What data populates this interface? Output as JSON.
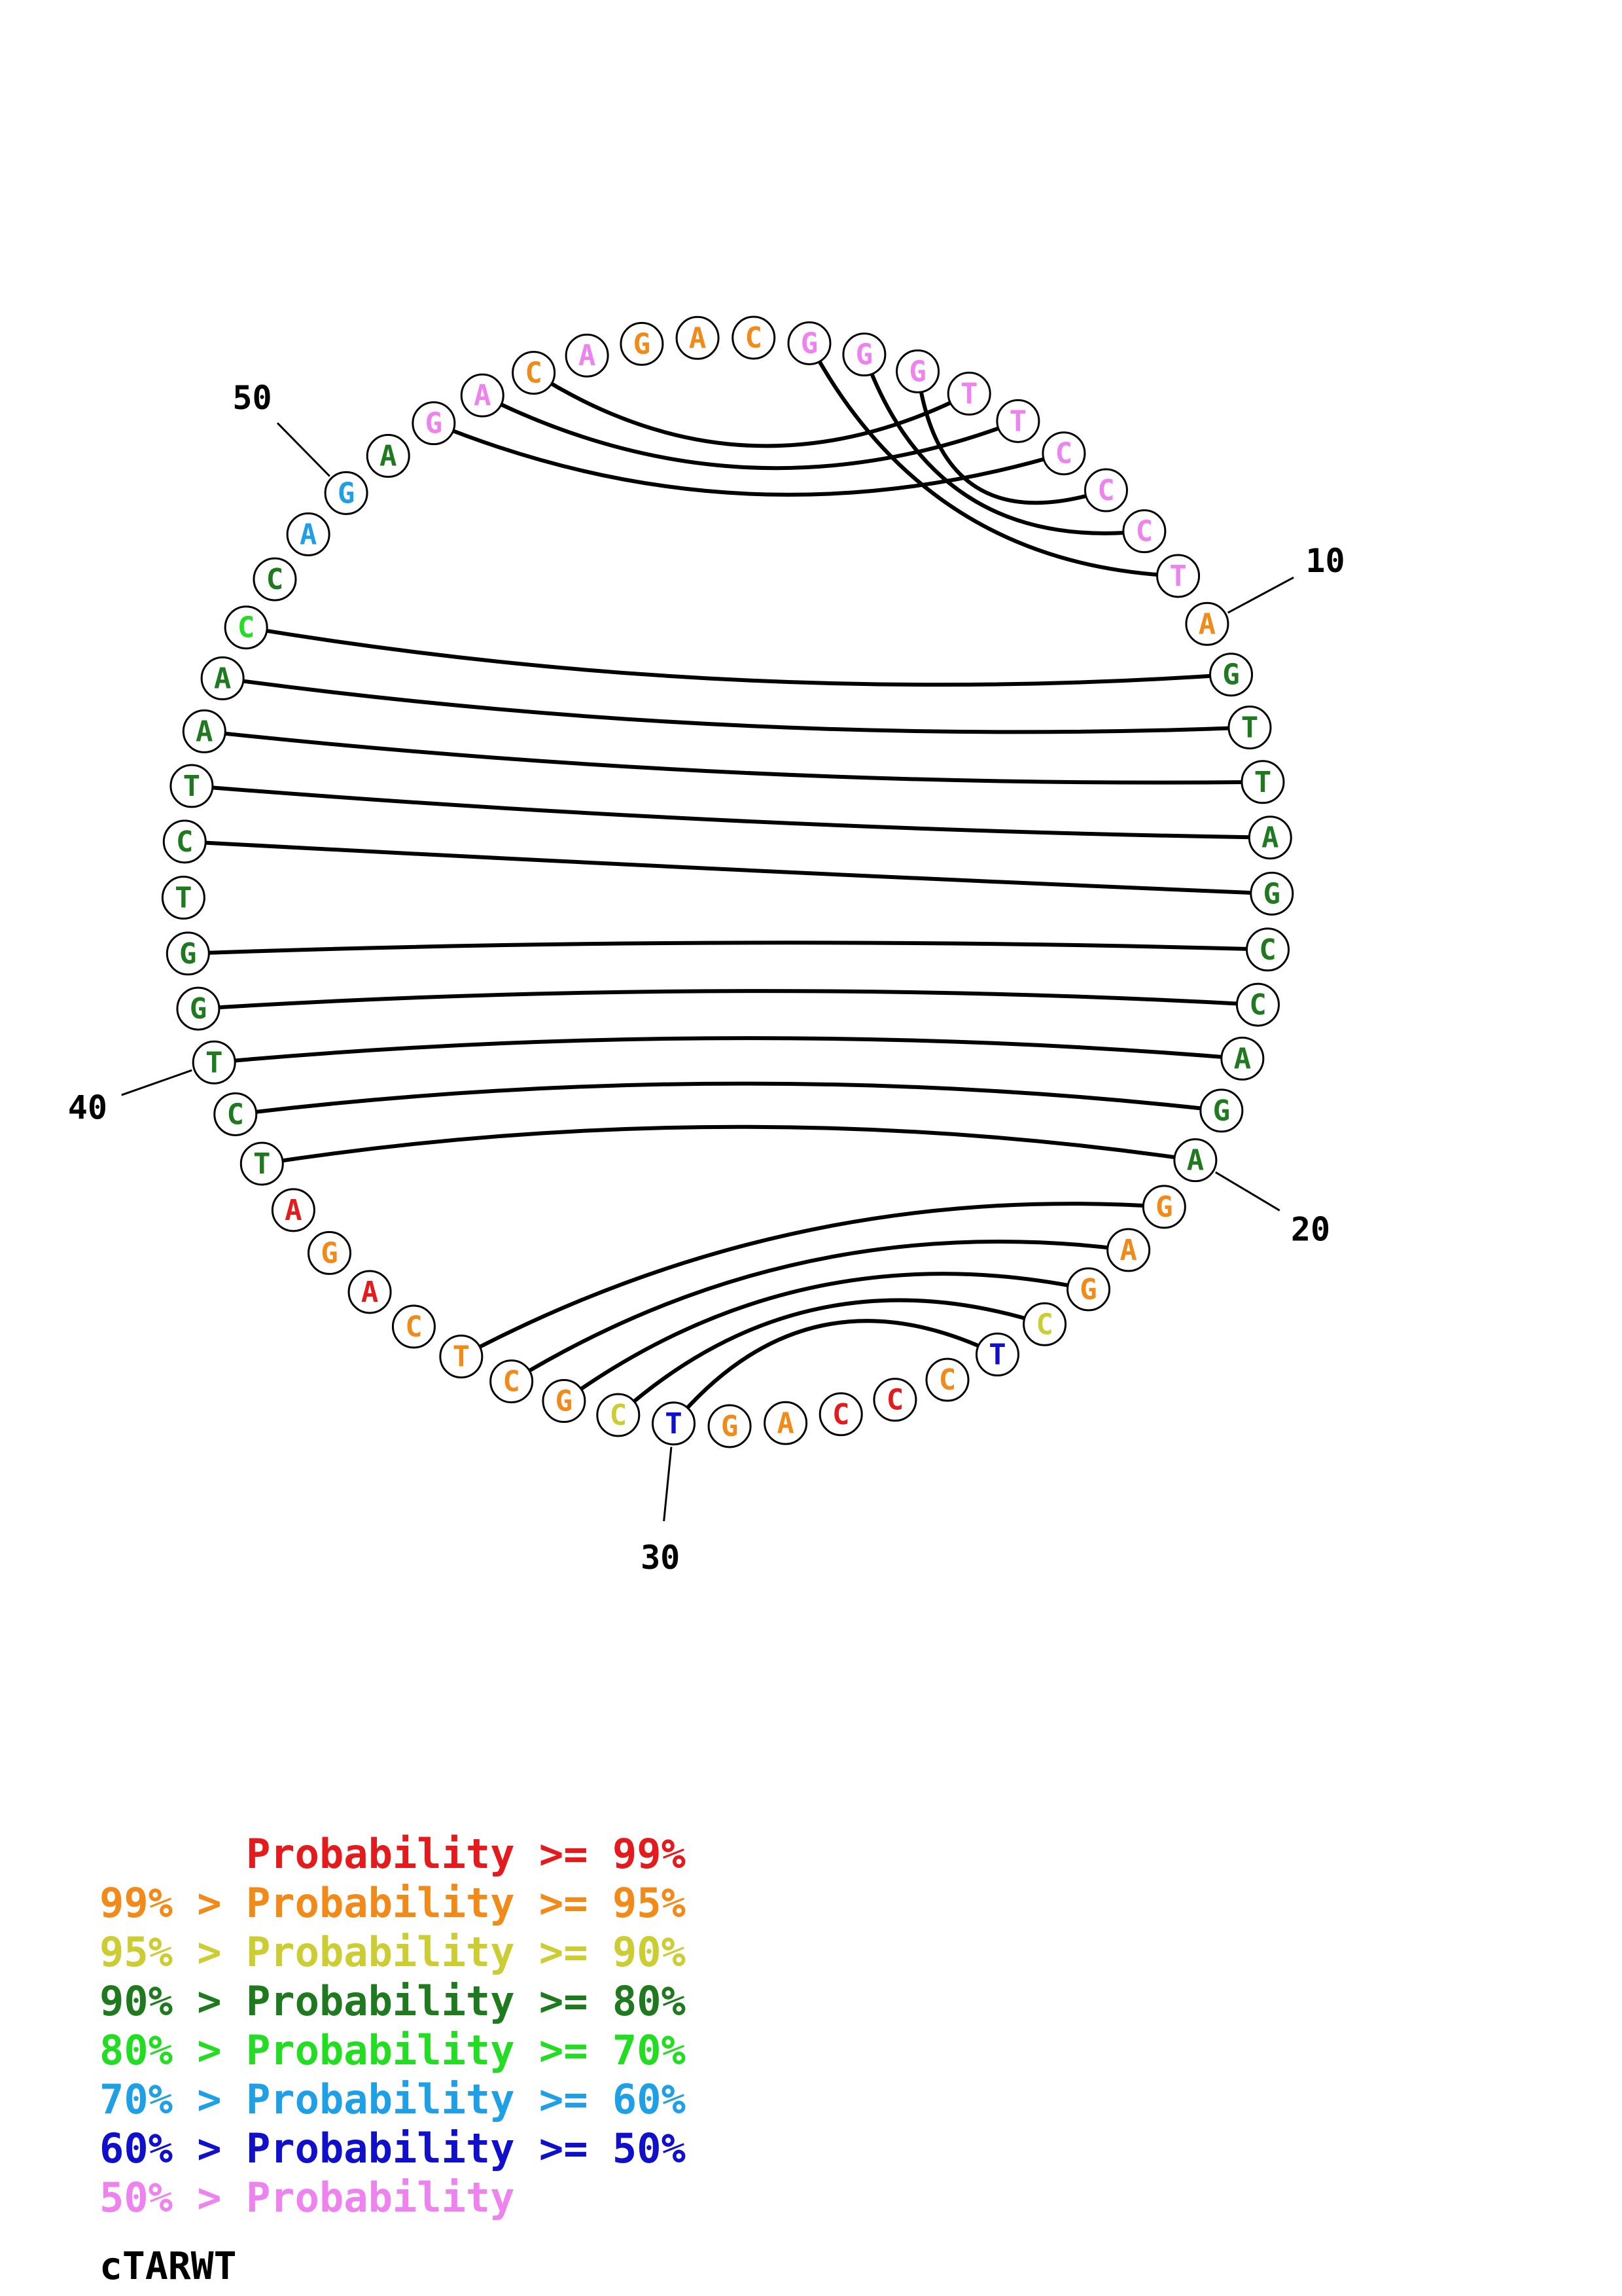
{
  "title": "cTARWT",
  "sequence": [
    "G",
    "G",
    "G",
    "T",
    "T",
    "C",
    "C",
    "C",
    "T",
    "A",
    "G",
    "T",
    "T",
    "A",
    "G",
    "C",
    "C",
    "A",
    "G",
    "A",
    "G",
    "A",
    "G",
    "C",
    "T",
    "C",
    "C",
    "C",
    "A",
    "G",
    "T",
    "C",
    "G",
    "C",
    "T",
    "C",
    "A",
    "G",
    "A",
    "T",
    "C",
    "T",
    "G",
    "G",
    "T",
    "C",
    "T",
    "A",
    "A",
    "C",
    "C",
    "A",
    "G",
    "A",
    "G",
    "A",
    "C",
    "A",
    "G",
    "A",
    "C"
  ],
  "nucleotide_colors": [
    "pink",
    "pink",
    "pink",
    "pink",
    "pink",
    "pink",
    "pink",
    "pink",
    "pink",
    "orange",
    "darkgreen",
    "darkgreen",
    "darkgreen",
    "darkgreen",
    "darkgreen",
    "darkgreen",
    "darkgreen",
    "darkgreen",
    "darkgreen",
    "darkgreen",
    "orange",
    "orange",
    "orange",
    "yellow",
    "blue",
    "orange",
    "red",
    "red",
    "orange",
    "orange",
    "blue",
    "yellow",
    "orange",
    "orange",
    "orange",
    "orange",
    "red",
    "orange",
    "red",
    "darkgreen",
    "darkgreen",
    "darkgreen",
    "darkgreen",
    "darkgreen",
    "darkgreen",
    "darkgreen",
    "darkgreen",
    "darkgreen",
    "darkgreen",
    "green",
    "darkgreen",
    "skyblue",
    "skyblue",
    "darkgreen",
    "pink",
    "pink",
    "orange",
    "pink",
    "orange",
    "orange",
    "orange"
  ],
  "pairs": [
    [
      1,
      9
    ],
    [
      2,
      8
    ],
    [
      3,
      7
    ],
    [
      4,
      57
    ],
    [
      5,
      56
    ],
    [
      6,
      55
    ],
    [
      11,
      50
    ],
    [
      12,
      49
    ],
    [
      13,
      48
    ],
    [
      14,
      47
    ],
    [
      15,
      46
    ],
    [
      16,
      44
    ],
    [
      17,
      43
    ],
    [
      18,
      42
    ],
    [
      19,
      41
    ],
    [
      20,
      40
    ],
    [
      21,
      35
    ],
    [
      22,
      34
    ],
    [
      23,
      33
    ],
    [
      24,
      32
    ],
    [
      25,
      31
    ]
  ],
  "position_labels": [
    {
      "index": 10,
      "text": "10"
    },
    {
      "index": 20,
      "text": "20"
    },
    {
      "index": 31,
      "text": "30"
    },
    {
      "index": 42,
      "text": "40"
    },
    {
      "index": 53,
      "text": "50"
    }
  ],
  "colors": {
    "red": "#e41a1c",
    "orange": "#f28a1a",
    "yellow": "#cccc33",
    "darkgreen": "#1f7a1f",
    "green": "#22dd22",
    "skyblue": "#1fa0e6",
    "blue": "#1010cc",
    "pink": "#ee82ee",
    "black": "#000000"
  },
  "legend": [
    {
      "prefix": "",
      "label": "Probability",
      "suffix": ">= 99%",
      "color": "red"
    },
    {
      "prefix": "99% >",
      "label": "Probability",
      "suffix": ">= 95%",
      "color": "orange"
    },
    {
      "prefix": "95% >",
      "label": "Probability",
      "suffix": ">= 90%",
      "color": "yellow"
    },
    {
      "prefix": "90% >",
      "label": "Probability",
      "suffix": ">= 80%",
      "color": "darkgreen"
    },
    {
      "prefix": "80% >",
      "label": "Probability",
      "suffix": ">= 70%",
      "color": "green"
    },
    {
      "prefix": "70% >",
      "label": "Probability",
      "suffix": ">= 60%",
      "color": "skyblue"
    },
    {
      "prefix": "60% >",
      "label": "Probability",
      "suffix": ">= 50%",
      "color": "blue"
    },
    {
      "prefix": "50% >",
      "label": "Probability",
      "suffix": "",
      "color": "pink"
    }
  ]
}
